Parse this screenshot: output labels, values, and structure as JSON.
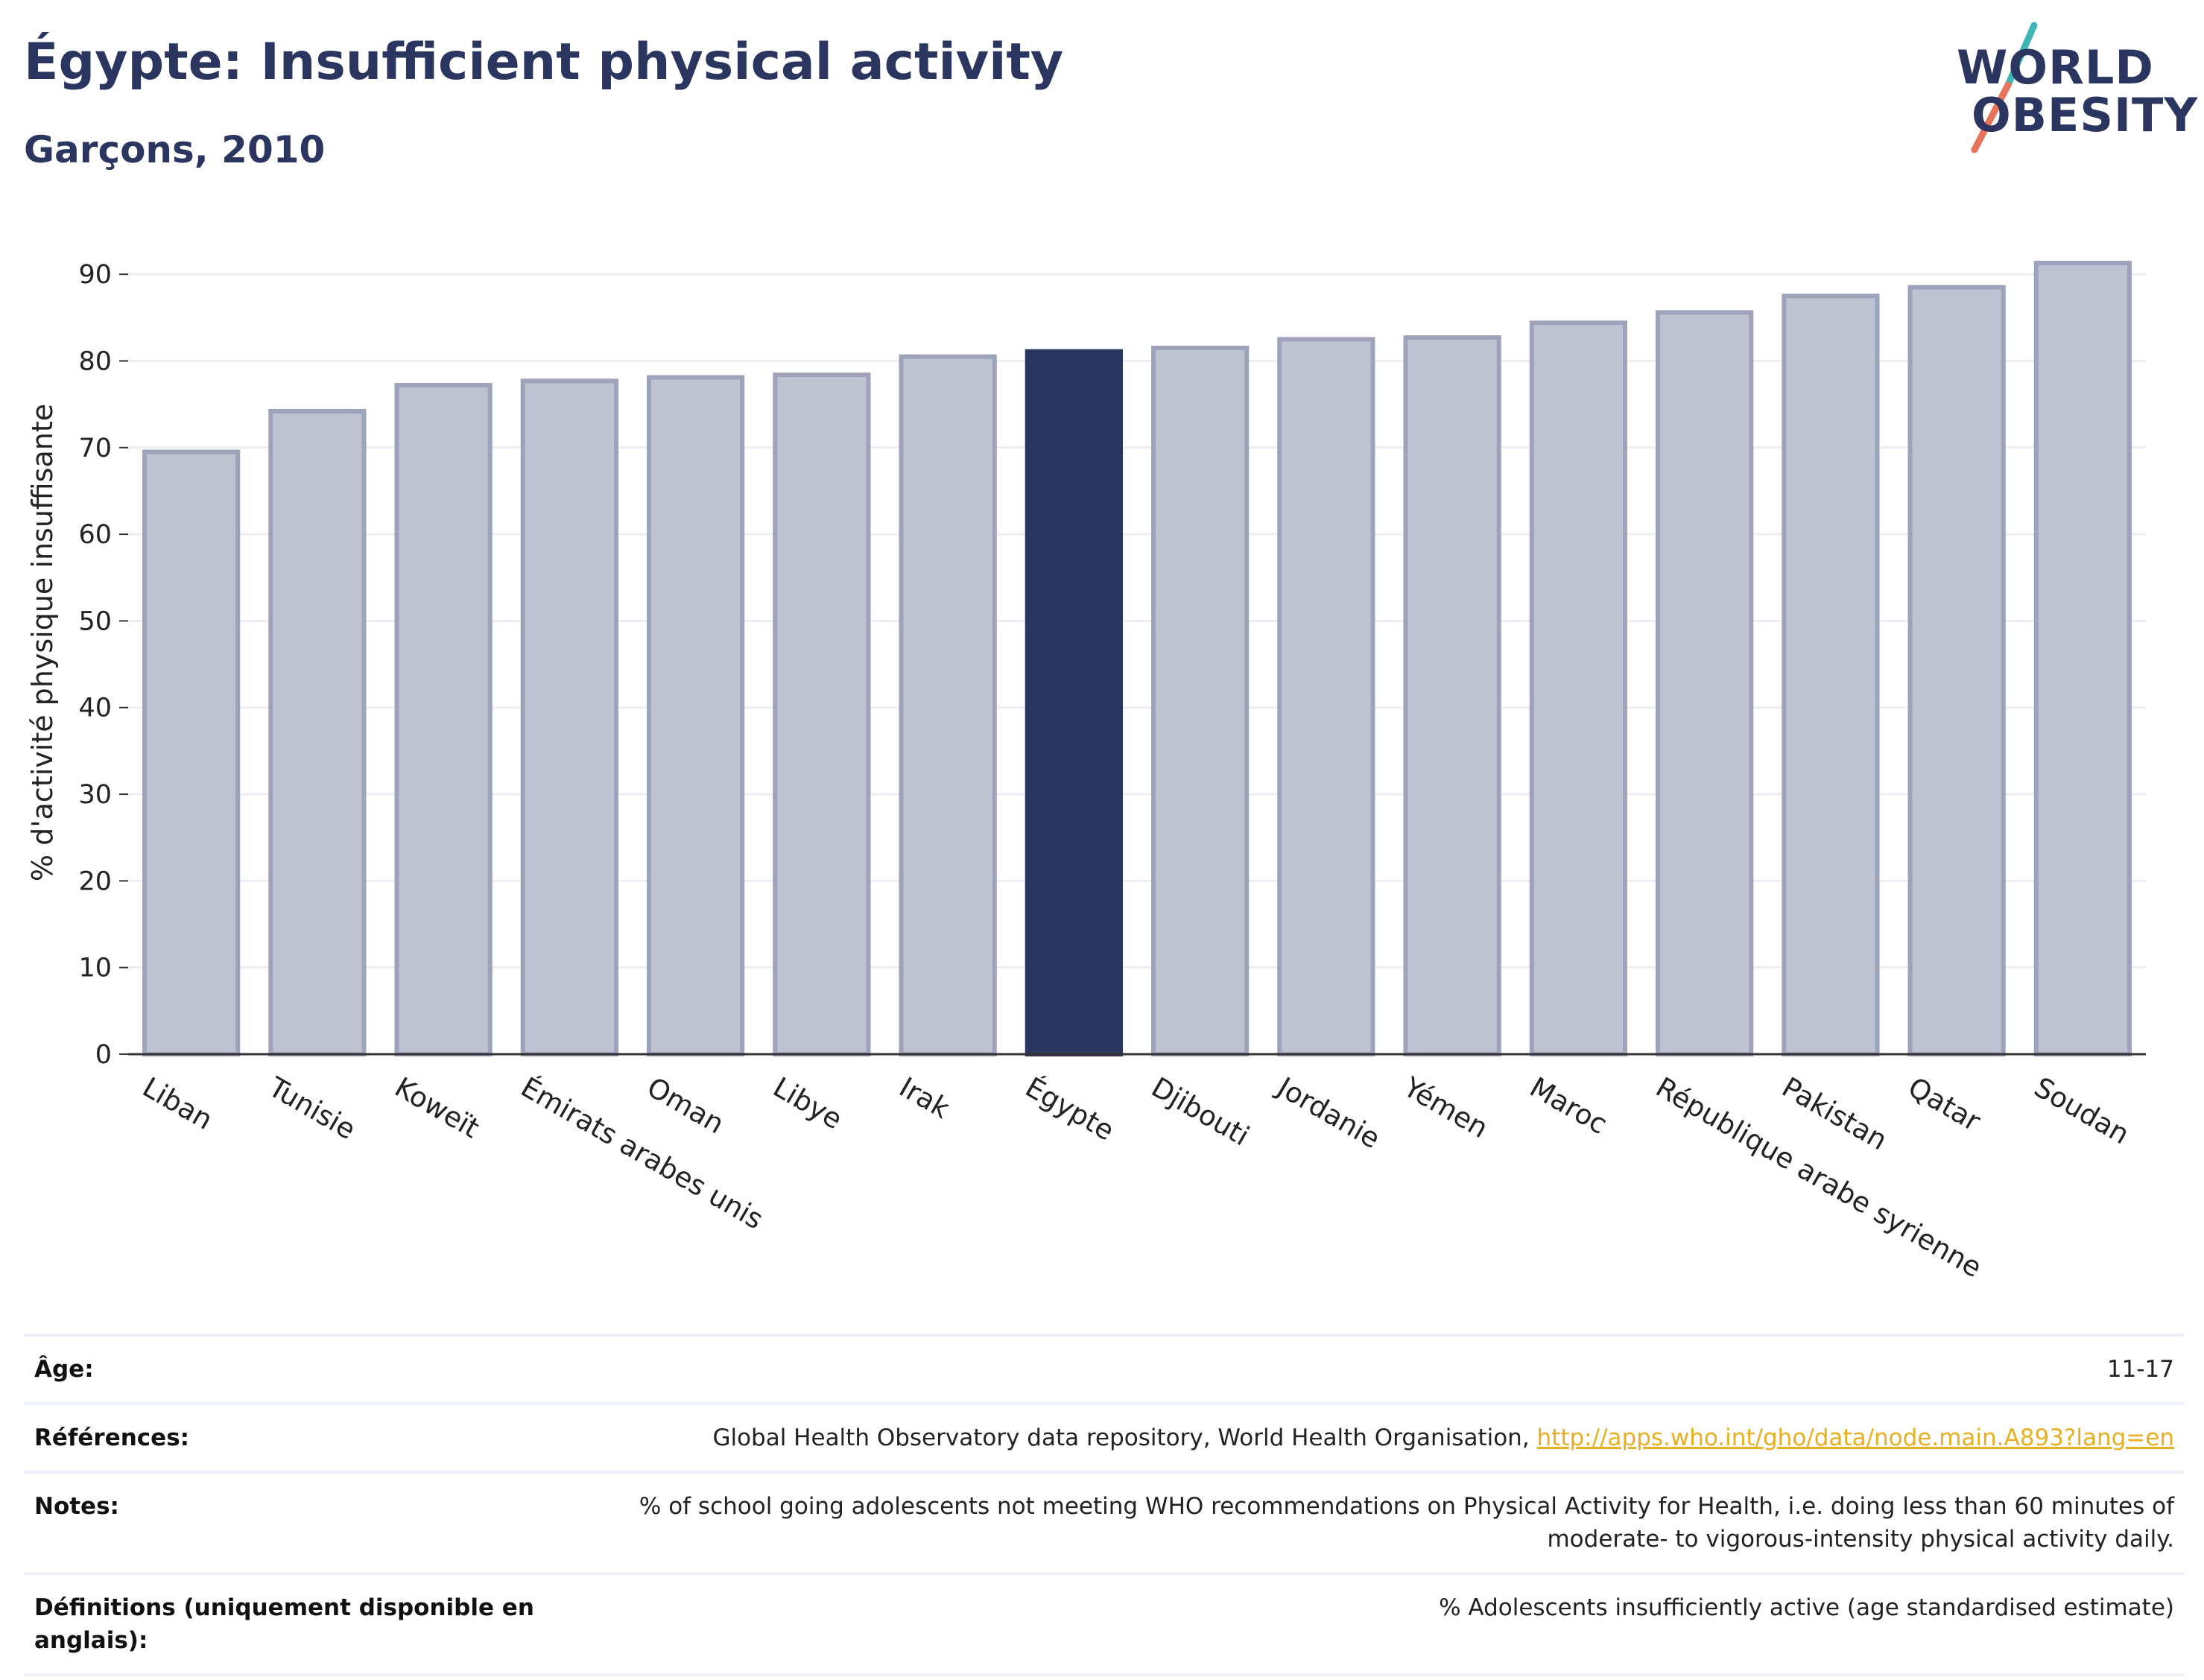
{
  "header": {
    "title": "Égypte: Insufficient physical activity",
    "subtitle": "Garçons, 2010"
  },
  "logo": {
    "line1": "WORLD",
    "line2": "OBESITY",
    "slash_colors": [
      "#3fb7b9",
      "#e8735b"
    ]
  },
  "colors": {
    "highlight": "#2b3660",
    "bar_fill": "#bfc2d1",
    "bar_stroke": "#9ea3bc",
    "grid": "#eceef3",
    "axis": "#333333"
  },
  "chart_data": {
    "type": "bar",
    "title": "Égypte: Insufficient physical activity",
    "subtitle": "Garçons, 2010",
    "xlabel": "",
    "ylabel": "% d'activité physique insuffisante",
    "ylim": [
      0,
      95
    ],
    "yticks": [
      0,
      10,
      20,
      30,
      40,
      50,
      60,
      70,
      80,
      90
    ],
    "grid": true,
    "highlight_category": "Égypte",
    "categories": [
      "Liban",
      "Tunisie",
      "Koweït",
      "Émirats arabes unis",
      "Oman",
      "Libye",
      "Irak",
      "Égypte",
      "Djibouti",
      "Jordanie",
      "Yémen",
      "Maroc",
      "République arabe syrienne",
      "Pakistan",
      "Qatar",
      "Soudan"
    ],
    "values": [
      69.5,
      74.2,
      77.2,
      77.7,
      78.1,
      78.4,
      80.5,
      81.1,
      81.5,
      82.5,
      82.7,
      84.4,
      85.6,
      87.5,
      88.5,
      91.3
    ]
  },
  "info": [
    {
      "label": "Âge:",
      "value": "11-17"
    },
    {
      "label": "Références:",
      "value": "Global Health Observatory data repository, World Health Organisation,",
      "link": "http://apps.who.int/gho/data/node.main.A893?lang=en"
    },
    {
      "label": "Notes:",
      "value": "% of school going adolescents not meeting WHO recommendations on Physical Activity for Health, i.e. doing less than 60 minutes of moderate- to vigorous-intensity physical activity daily."
    },
    {
      "label": "Définitions (uniquement disponible en anglais):",
      "value": "% Adolescents insufficiently active (age standardised estimate)"
    }
  ]
}
